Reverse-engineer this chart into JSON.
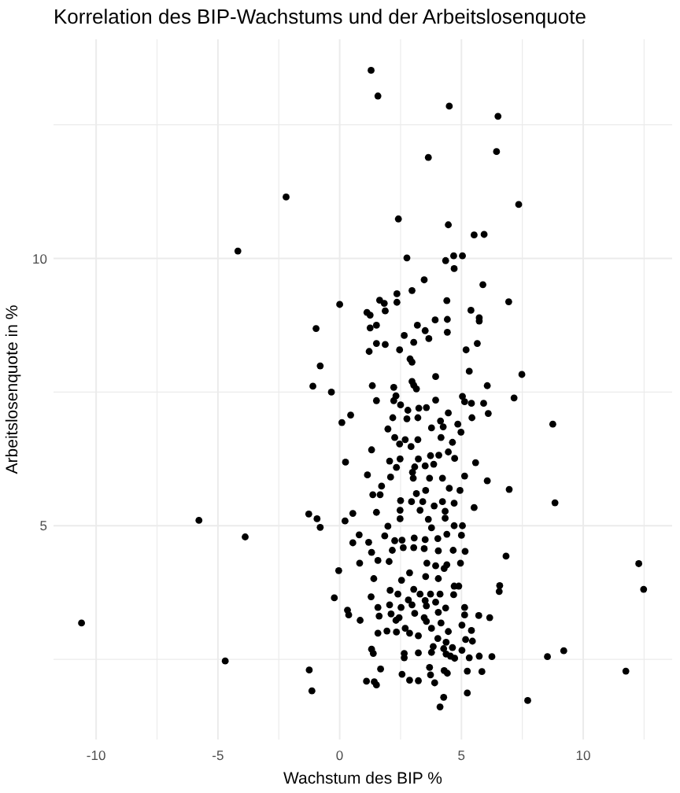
{
  "chart_data": {
    "type": "scatter",
    "title": "Korrelation des BIP-Wachstums und der Arbeitslosenquote",
    "xlabel": "Wachstum des BIP %",
    "ylabel": "Arbeitslosenquote in %",
    "xlim": [
      -11.75,
      13.65
    ],
    "ylim": [
      1.0,
      14.1
    ],
    "xticks": [
      -10,
      {
        "value": -7.5,
        "label": null
      },
      -5,
      {
        "value": -2.5,
        "label": null
      },
      0,
      {
        "value": 2.5,
        "label": null
      },
      5,
      {
        "value": 7.5,
        "label": null
      },
      10,
      {
        "value": 12.5,
        "label": null
      }
    ],
    "yticks": [
      {
        "value": 2.5,
        "label": null
      },
      5,
      {
        "value": 7.5,
        "label": null
      },
      10,
      {
        "value": 12.5,
        "label": null
      }
    ],
    "grid": true,
    "marker": "circle",
    "series": [
      {
        "color": "#000000",
        "x": [
          1.29,
          1.57,
          4.5,
          6.5,
          6.44,
          3.64,
          -2.2,
          7.35,
          2.41,
          4.46,
          5.52,
          5.93,
          -4.18,
          2.76,
          4.35,
          4.68,
          5.04,
          4.7,
          3.47,
          5.88,
          2.35,
          2.97,
          0.0,
          6.94,
          4.4,
          1.64,
          1.83,
          1.12,
          1.25,
          1.87,
          2.35,
          5.39,
          3.92,
          4.42,
          5.73,
          5.73,
          -0.97,
          1.25,
          1.51,
          3.19,
          3.51,
          4.42,
          2.65,
          3.66,
          3.04,
          5.65,
          1.51,
          1.87,
          1.21,
          2.46,
          5.19,
          2.89,
          2.97,
          -0.8,
          5.32,
          7.48,
          3.94,
          2.97,
          -1.1,
          1.34,
          3.04,
          3.15,
          6.06,
          -0.34,
          2.22,
          2.31,
          5.04,
          7.16,
          1.51,
          2.22,
          3.94,
          5.13,
          5.41,
          5.91,
          2.5,
          2.8,
          3.25,
          3.56,
          4.46,
          6.1,
          0.45,
          2.18,
          2.76,
          3.21,
          4.14,
          5.43,
          0.09,
          8.75,
          1.98,
          3.77,
          4.25,
          4.85,
          4.98,
          2.26,
          2.69,
          3.21,
          4.16,
          4.63,
          2.46,
          2.93,
          1.31,
          4.46,
          0.24,
          2.05,
          2.48,
          3.23,
          3.73,
          4.07,
          4.72,
          5.58,
          2.33,
          3.08,
          3.51,
          3.86,
          2.99,
          1.14,
          2.09,
          3.02,
          3.69,
          4.22,
          5.13,
          6.06,
          1.72,
          3.15,
          3.53,
          4.5,
          4.94,
          6.96,
          1.36,
          1.66,
          2.5,
          2.95,
          3.41,
          4.22,
          4.7,
          8.84,
          5.52,
          1.51,
          2.48,
          3.3,
          3.88,
          4.33,
          -1.27,
          0.54,
          -5.78,
          -0.93,
          0.22,
          2.48,
          3.64,
          4.33,
          -0.8,
          1.98,
          3.77,
          4.7,
          5.04,
          0.8,
          1.85,
          4.4,
          5.0,
          -3.88,
          0.54,
          1.19,
          2.26,
          2.56,
          3.06,
          3.51,
          4.03,
          2.61,
          2.16,
          3.04,
          3.47,
          4.05,
          4.66,
          5.15,
          1.31,
          6.83,
          1.57,
          0.82,
          2.03,
          3.58,
          3.94,
          4.96,
          12.28,
          4.29,
          4.4,
          -0.04,
          2.87,
          3.53,
          1.4,
          2.54,
          4.05,
          4.7,
          4.89,
          6.57,
          6.55,
          12.48,
          -0.22,
          1.29,
          2.07,
          3.04,
          2.39,
          2.82,
          3.3,
          3.73,
          4.12,
          4.68,
          3.51,
          2.97,
          3.56,
          3.94,
          4.35,
          5.13,
          1.57,
          2.05,
          2.52,
          0.32,
          1.62,
          2.11,
          2.44,
          3.08,
          3.47,
          4.05,
          5.13,
          5.71,
          6.16,
          0.37,
          0.84,
          2.31,
          3.56,
          4.16,
          -10.6,
          5.02,
          2.69,
          3.77,
          1.57,
          1.94,
          2.33,
          2.87,
          4.46,
          5.41,
          3.23,
          4.03,
          5.17,
          5.45,
          4.37,
          3.84,
          4.27,
          4.63,
          1.31,
          5.02,
          9.2,
          1.38,
          2.65,
          3.23,
          3.77,
          4.37,
          2.65,
          4.55,
          5.32,
          5.73,
          6.25,
          8.53,
          -4.7,
          4.72,
          1.68,
          -1.25,
          3.69,
          5.24,
          4.29,
          5.84,
          11.75,
          2.56,
          3.73,
          4.42,
          2.87,
          3.23,
          1.1,
          1.42,
          1.51,
          3.9,
          -1.14,
          5.24,
          4.27,
          7.72,
          4.12
        ],
        "values": [
          13.52,
          13.04,
          12.85,
          12.66,
          12.0,
          11.89,
          11.15,
          11.01,
          10.74,
          10.63,
          10.44,
          10.45,
          10.14,
          10.01,
          9.96,
          10.05,
          10.05,
          9.81,
          9.6,
          9.51,
          9.34,
          9.4,
          9.14,
          9.19,
          9.21,
          9.22,
          9.16,
          8.99,
          8.94,
          9.02,
          9.18,
          9.03,
          8.85,
          8.86,
          8.89,
          8.83,
          8.69,
          8.7,
          8.75,
          8.75,
          8.65,
          8.62,
          8.56,
          8.5,
          8.43,
          8.41,
          8.41,
          8.39,
          8.26,
          8.29,
          8.29,
          8.12,
          8.06,
          7.99,
          7.89,
          7.83,
          7.79,
          7.7,
          7.61,
          7.62,
          7.63,
          7.56,
          7.62,
          7.5,
          7.59,
          7.43,
          7.42,
          7.39,
          7.34,
          7.34,
          7.35,
          7.32,
          7.29,
          7.29,
          7.26,
          7.16,
          7.2,
          7.21,
          7.11,
          7.1,
          7.07,
          7.02,
          7.0,
          7.02,
          6.96,
          7.02,
          6.93,
          6.9,
          6.81,
          6.83,
          6.85,
          6.9,
          6.75,
          6.65,
          6.61,
          6.61,
          6.65,
          6.56,
          6.53,
          6.48,
          6.42,
          6.38,
          6.19,
          6.21,
          6.25,
          6.25,
          6.31,
          6.32,
          6.26,
          6.18,
          6.09,
          6.1,
          6.12,
          6.15,
          6.0,
          5.95,
          5.91,
          5.89,
          5.89,
          5.89,
          5.93,
          5.84,
          5.74,
          5.6,
          5.66,
          5.7,
          5.66,
          5.68,
          5.58,
          5.58,
          5.47,
          5.45,
          5.45,
          5.45,
          5.42,
          5.43,
          5.34,
          5.25,
          5.29,
          5.29,
          5.37,
          5.27,
          5.22,
          5.23,
          5.1,
          5.13,
          5.09,
          5.13,
          5.12,
          5.14,
          4.97,
          4.99,
          4.96,
          5.0,
          5.0,
          4.83,
          4.81,
          4.84,
          4.82,
          4.79,
          4.68,
          4.69,
          4.72,
          4.73,
          4.77,
          4.74,
          4.76,
          4.59,
          4.54,
          4.59,
          4.57,
          4.53,
          4.54,
          4.52,
          4.5,
          4.43,
          4.35,
          4.3,
          4.33,
          4.3,
          4.25,
          4.3,
          4.29,
          4.2,
          4.27,
          4.16,
          4.12,
          4.05,
          4.01,
          3.98,
          4.01,
          3.87,
          3.87,
          3.88,
          3.77,
          3.81,
          3.65,
          3.67,
          3.79,
          3.81,
          3.72,
          3.61,
          3.72,
          3.72,
          3.72,
          3.71,
          3.6,
          3.52,
          3.5,
          3.57,
          3.46,
          3.47,
          3.47,
          3.52,
          3.47,
          3.42,
          3.31,
          3.35,
          3.28,
          3.36,
          3.28,
          3.38,
          3.33,
          3.32,
          3.28,
          3.33,
          3.23,
          3.23,
          3.21,
          3.18,
          3.18,
          3.14,
          3.08,
          3.08,
          2.99,
          3.03,
          3.01,
          2.99,
          3.02,
          3.04,
          2.94,
          2.89,
          2.87,
          2.84,
          2.82,
          2.74,
          2.7,
          2.72,
          2.69,
          2.67,
          2.66,
          2.61,
          2.61,
          2.62,
          2.63,
          2.6,
          2.53,
          2.56,
          2.53,
          2.56,
          2.55,
          2.55,
          2.47,
          2.52,
          2.32,
          2.3,
          2.35,
          2.28,
          2.29,
          2.27,
          2.28,
          2.22,
          2.21,
          2.24,
          2.11,
          2.1,
          2.09,
          2.08,
          2.02,
          2.06,
          1.91,
          1.87,
          1.79,
          1.73,
          1.61
        ]
      }
    ]
  }
}
